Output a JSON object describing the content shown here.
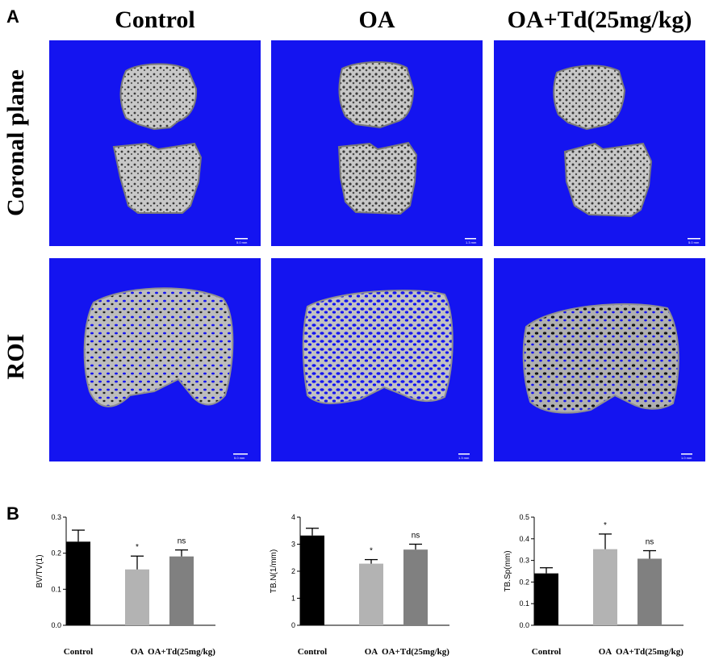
{
  "panel_labels": {
    "a": "A",
    "b": "B"
  },
  "images": {
    "column_headers": [
      "Control",
      "OA",
      "OA+Td(25mg/kg)"
    ],
    "row_headers": [
      "Coronal plane",
      "ROI"
    ],
    "background_color": "#1414f0",
    "bone_color": "#b9b9b9",
    "scale_bar_labels": {
      "coronal": [
        "5.0 mm",
        "1.3 mm",
        "5.0 mm"
      ],
      "roi": [
        "5.0 mm",
        "1.3 mm",
        "1.0 mm"
      ]
    }
  },
  "chart_data": [
    {
      "type": "bar",
      "ylabel": "BV/TV(1)",
      "categories": [
        "Control",
        "OA",
        "OA+Td(25mg/kg)"
      ],
      "values": [
        0.232,
        0.155,
        0.191
      ],
      "errors": [
        0.032,
        0.037,
        0.018
      ],
      "annotations": [
        "",
        "*",
        "ns"
      ],
      "ylim": [
        0,
        0.3
      ],
      "yticks": [
        0.0,
        0.1,
        0.2,
        0.3
      ],
      "ytick_labels": [
        "0.0",
        "0.1",
        "0.2",
        "0.3"
      ],
      "colors": [
        "#000000",
        "#b3b3b3",
        "#808080"
      ]
    },
    {
      "type": "bar",
      "ylabel": "TB.N(1/mm)",
      "categories": [
        "Control",
        "OA",
        "OA+Td(25mg/kg)"
      ],
      "values": [
        3.32,
        2.28,
        2.8
      ],
      "errors": [
        0.27,
        0.15,
        0.2
      ],
      "annotations": [
        "",
        "*",
        "ns"
      ],
      "ylim": [
        0,
        4
      ],
      "yticks": [
        0,
        1,
        2,
        3,
        4
      ],
      "ytick_labels": [
        "0",
        "1",
        "2",
        "3",
        "4"
      ],
      "colors": [
        "#000000",
        "#b3b3b3",
        "#808080"
      ]
    },
    {
      "type": "bar",
      "ylabel": "TB.Sp(mm)",
      "categories": [
        "Control",
        "OA",
        "OA+Td(25mg/kg)"
      ],
      "values": [
        0.24,
        0.352,
        0.308
      ],
      "errors": [
        0.026,
        0.07,
        0.037
      ],
      "annotations": [
        "",
        "*",
        "ns"
      ],
      "ylim": [
        0,
        0.5
      ],
      "yticks": [
        0.0,
        0.1,
        0.2,
        0.3,
        0.4,
        0.5
      ],
      "ytick_labels": [
        "0.0",
        "0.1",
        "0.2",
        "0.3",
        "0.4",
        "0.5"
      ],
      "colors": [
        "#000000",
        "#b3b3b3",
        "#808080"
      ]
    }
  ]
}
